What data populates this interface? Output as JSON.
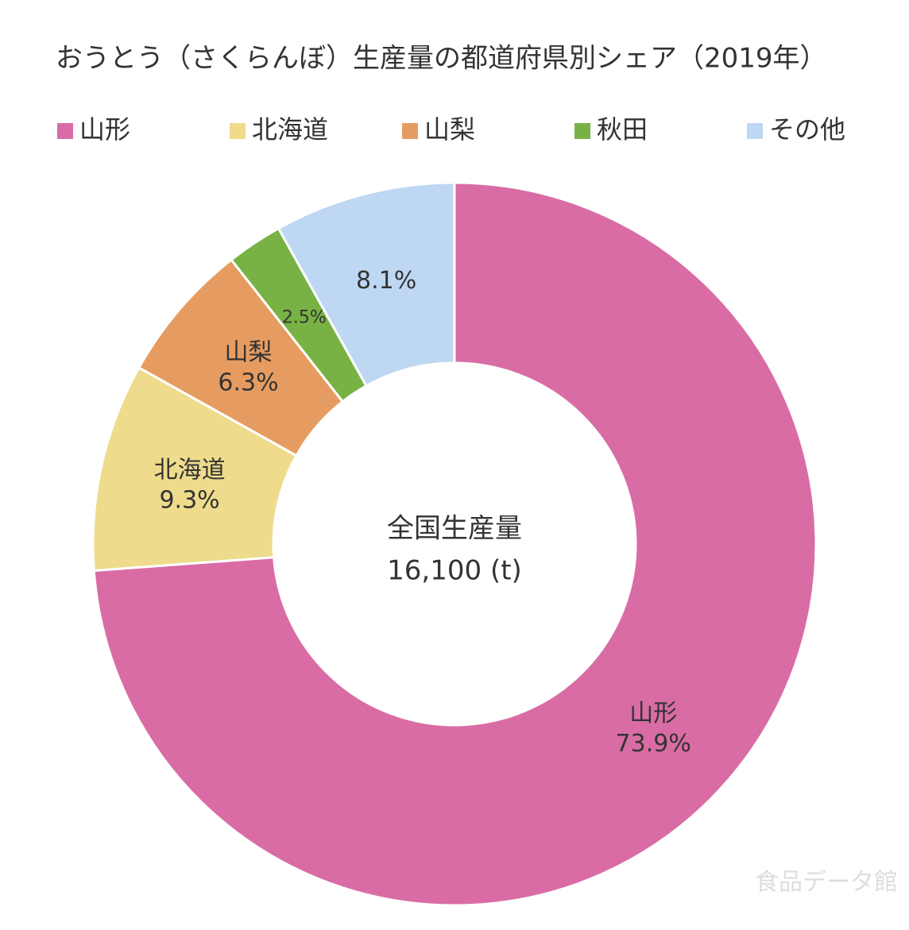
{
  "chart_data": {
    "type": "donut",
    "title": "おうとう（さくらんぼ）生産量の都道府県別シェア（2019年）",
    "categories": [
      "山形",
      "北海道",
      "山梨",
      "秋田",
      "その他"
    ],
    "values": [
      73.9,
      9.3,
      6.3,
      2.5,
      8.1
    ],
    "value_labels": [
      "73.9%",
      "9.3%",
      "6.3%",
      "2.5%",
      "8.1%"
    ],
    "category_in_label": [
      true,
      true,
      true,
      false,
      false
    ],
    "colors": [
      "#d96ca4",
      "#eedb8c",
      "#e69c60",
      "#78b244",
      "#bed7f2"
    ],
    "legend": "top",
    "center_label": "全国生産量",
    "center_value": "16,100 (t)",
    "watermark": "食品データ館"
  }
}
